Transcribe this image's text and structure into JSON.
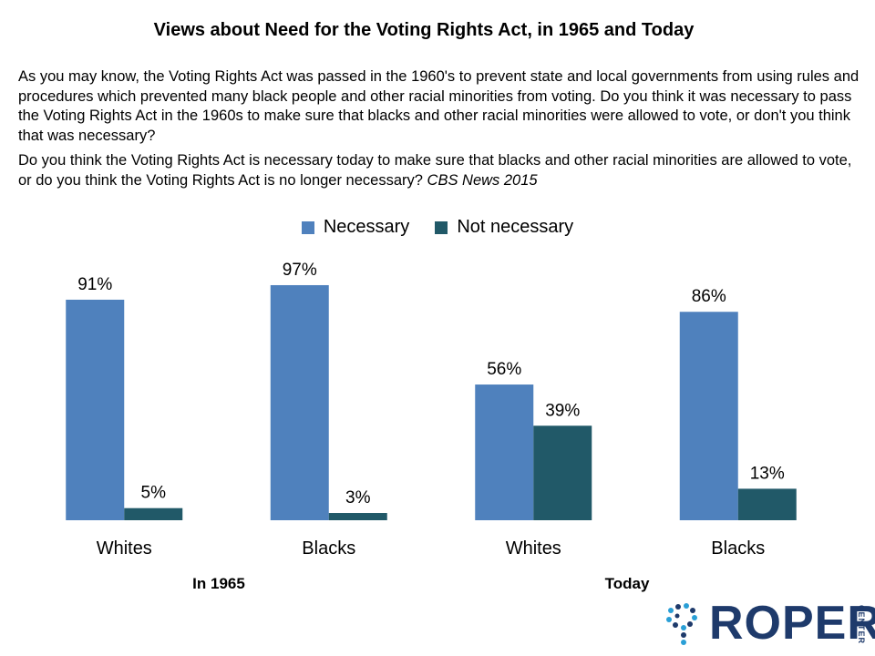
{
  "title": "Views about Need for the Voting Rights Act, in 1965 and Today",
  "question1": "As you may know, the Voting Rights Act was passed in the 1960's to prevent state and local governments from using rules and procedures which prevented many black people and other racial minorities from voting. Do you think it was necessary to pass the Voting Rights Act in the 1960s to make sure that blacks and other racial minorities were allowed to vote, or don't you think that was necessary?",
  "question2": "Do you think the Voting Rights Act is necessary today to make sure that blacks and other racial minorities are allowed to vote, or do you think the Voting Rights Act is no longer necessary?",
  "source": "CBS News 2015",
  "logo": {
    "text": "ROPER",
    "sub": "CENTER"
  },
  "colors": {
    "necessary": "#4f81bd",
    "not_necessary": "#215968"
  },
  "chart_data": {
    "type": "bar",
    "categories": [
      "Whites",
      "Blacks",
      "Whites",
      "Blacks"
    ],
    "groups": [
      "In 1965",
      "Today"
    ],
    "series": [
      {
        "name": "Necessary",
        "values": [
          91,
          97,
          56,
          86
        ]
      },
      {
        "name": "Not necessary",
        "values": [
          5,
          3,
          39,
          13
        ]
      }
    ],
    "data_labels": [
      [
        "91%",
        "97%",
        "56%",
        "86%"
      ],
      [
        "5%",
        "3%",
        "39%",
        "13%"
      ]
    ],
    "ylim": [
      0,
      100
    ],
    "legend": "top-center",
    "grid": false
  }
}
